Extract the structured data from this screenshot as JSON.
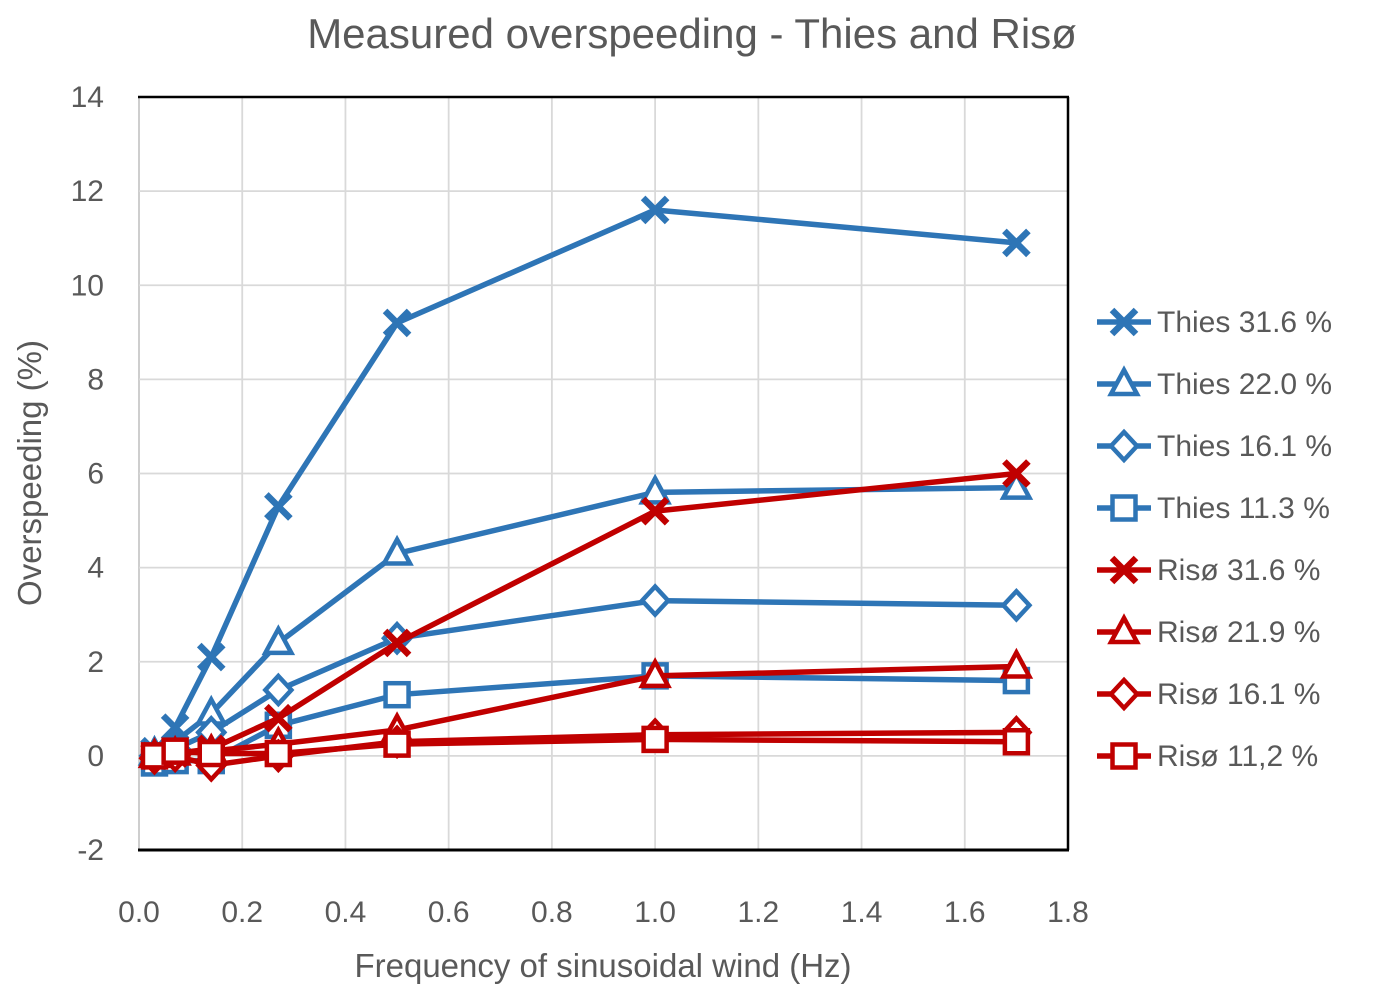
{
  "style": {
    "blue": "#2E75B6",
    "red": "#C00000",
    "grid_color": "#D9D9D9",
    "left_border_color": "#C9C9C9",
    "border_color": "#000000",
    "text_color": "#595959",
    "marker_fill": "#FFFFFF"
  },
  "chart_data": {
    "type": "line",
    "title": "Measured overspeeding - Thies and Risø",
    "xlabel": "Frequency of sinusoidal wind (Hz)",
    "ylabel": "Overspeeding (%)",
    "xlim": [
      0,
      1.8
    ],
    "ylim": [
      -2,
      14
    ],
    "xticks": [
      "0.0",
      "0.2",
      "0.4",
      "0.6",
      "0.8",
      "1.0",
      "1.2",
      "1.4",
      "1.6",
      "1.8"
    ],
    "yticks": [
      "-2",
      "0",
      "2",
      "4",
      "6",
      "8",
      "10",
      "12",
      "14"
    ],
    "grid": true,
    "legend_position": "right",
    "x": [
      0.03,
      0.07,
      0.14,
      0.27,
      0.5,
      1.0,
      1.7
    ],
    "series": [
      {
        "name": "Thies 31.6 %",
        "color": "#2E75B6",
        "marker": "x",
        "values": [
          0.1,
          0.6,
          2.1,
          5.3,
          9.2,
          11.6,
          10.9
        ]
      },
      {
        "name": "Thies 22.0 %",
        "color": "#2E75B6",
        "marker": "triangle",
        "values": [
          0.05,
          0.3,
          0.9,
          2.4,
          4.3,
          5.6,
          5.7
        ]
      },
      {
        "name": "Thies 16.1 %",
        "color": "#2E75B6",
        "marker": "diamond",
        "values": [
          0.0,
          0.15,
          0.5,
          1.4,
          2.5,
          3.3,
          3.2
        ]
      },
      {
        "name": "Thies 11.3 %",
        "color": "#2E75B6",
        "marker": "square",
        "values": [
          -0.15,
          -0.1,
          -0.1,
          0.65,
          1.3,
          1.7,
          1.6
        ]
      },
      {
        "name": "Risø 31.6 %",
        "color": "#C00000",
        "marker": "x",
        "values": [
          0.0,
          0.05,
          0.15,
          0.8,
          2.4,
          5.2,
          6.0
        ]
      },
      {
        "name": "Risø 21.9 %",
        "color": "#C00000",
        "marker": "triangle",
        "values": [
          0.0,
          0.05,
          0.1,
          0.25,
          0.55,
          1.7,
          1.9
        ]
      },
      {
        "name": "Risø 16.1 %",
        "color": "#C00000",
        "marker": "diamond",
        "values": [
          -0.05,
          0.0,
          -0.2,
          0.0,
          0.3,
          0.45,
          0.5
        ]
      },
      {
        "name": "Risø 11,2 %",
        "color": "#C00000",
        "marker": "square",
        "values": [
          0.0,
          0.1,
          0.05,
          0.05,
          0.25,
          0.35,
          0.3
        ]
      }
    ]
  }
}
